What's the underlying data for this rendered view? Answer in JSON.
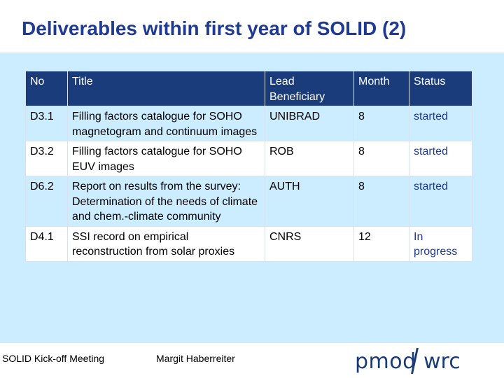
{
  "slide": {
    "title": "Deliverables within first year of SOLID (2)"
  },
  "table": {
    "headers": {
      "no": "No",
      "title": "Title",
      "lead": "Lead Beneficiary",
      "month": "Month",
      "status": "Status"
    },
    "rows": [
      {
        "no": "D3.1",
        "title": "Filling factors catalogue for SOHO magnetogram and continuum images",
        "lead": "UNIBRAD",
        "month": "8",
        "status": "started"
      },
      {
        "no": "D3.2",
        "title": "Filling factors catalogue for SOHO EUV images",
        "lead": "ROB",
        "month": "8",
        "status": "started"
      },
      {
        "no": "D6.2",
        "title": "Report on results from the survey: Determination of the needs of climate and chem.-climate community",
        "lead": "AUTH",
        "month": "8",
        "status": "started"
      },
      {
        "no": "D4.1",
        "title": "SSI record on empirical reconstruction from solar proxies",
        "lead": "CNRS",
        "month": "12",
        "status": "In progress"
      }
    ]
  },
  "footer": {
    "meeting": "SOLID Kick-off Meeting",
    "author": "Margit Haberreiter",
    "logo_left": "pmod",
    "logo_right": "wrc"
  },
  "colors": {
    "title": "#1f3a93",
    "header_bg": "#1b3c7a",
    "panel_bg": "#ccecff",
    "status_text": "#1f3a93"
  }
}
